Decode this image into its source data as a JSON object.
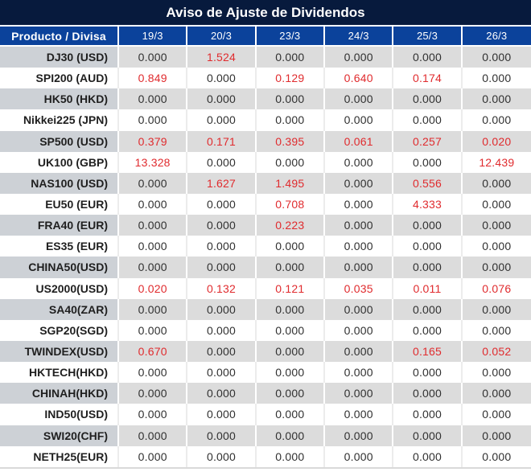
{
  "title": "Aviso de Ajuste de Dividendos",
  "colors": {
    "title_bar": "#071a3d",
    "header_blue": "#0b429b",
    "row_gray": "#dcdcdc",
    "row_gray_first": "#cdd1d6",
    "text_dark": "#303030",
    "text_red": "#e02b2e",
    "strip_gray": "#d9d9d9"
  },
  "table": {
    "columns": [
      "Producto / Divisa",
      "19/3",
      "20/3",
      "23/3",
      "24/3",
      "25/3",
      "26/3"
    ],
    "rows": [
      {
        "product": "DJ30 (USD)",
        "values": [
          "0.000",
          "1.524",
          "0.000",
          "0.000",
          "0.000",
          "0.000"
        ]
      },
      {
        "product": "SPI200 (AUD)",
        "values": [
          "0.849",
          "0.000",
          "0.129",
          "0.640",
          "0.174",
          "0.000"
        ]
      },
      {
        "product": "HK50 (HKD)",
        "values": [
          "0.000",
          "0.000",
          "0.000",
          "0.000",
          "0.000",
          "0.000"
        ]
      },
      {
        "product": "Nikkei225 (JPN)",
        "values": [
          "0.000",
          "0.000",
          "0.000",
          "0.000",
          "0.000",
          "0.000"
        ]
      },
      {
        "product": "SP500 (USD)",
        "values": [
          "0.379",
          "0.171",
          "0.395",
          "0.061",
          "0.257",
          "0.020"
        ]
      },
      {
        "product": "UK100 (GBP)",
        "values": [
          "13.328",
          "0.000",
          "0.000",
          "0.000",
          "0.000",
          "12.439"
        ]
      },
      {
        "product": "NAS100 (USD)",
        "values": [
          "0.000",
          "1.627",
          "1.495",
          "0.000",
          "0.556",
          "0.000"
        ]
      },
      {
        "product": "EU50 (EUR)",
        "values": [
          "0.000",
          "0.000",
          "0.708",
          "0.000",
          "4.333",
          "0.000"
        ]
      },
      {
        "product": "FRA40 (EUR)",
        "values": [
          "0.000",
          "0.000",
          "0.223",
          "0.000",
          "0.000",
          "0.000"
        ]
      },
      {
        "product": "ES35 (EUR)",
        "values": [
          "0.000",
          "0.000",
          "0.000",
          "0.000",
          "0.000",
          "0.000"
        ]
      },
      {
        "product": "CHINA50(USD)",
        "values": [
          "0.000",
          "0.000",
          "0.000",
          "0.000",
          "0.000",
          "0.000"
        ]
      },
      {
        "product": "US2000(USD)",
        "values": [
          "0.020",
          "0.132",
          "0.121",
          "0.035",
          "0.011",
          "0.076"
        ]
      },
      {
        "product": "SA40(ZAR)",
        "values": [
          "0.000",
          "0.000",
          "0.000",
          "0.000",
          "0.000",
          "0.000"
        ]
      },
      {
        "product": "SGP20(SGD)",
        "values": [
          "0.000",
          "0.000",
          "0.000",
          "0.000",
          "0.000",
          "0.000"
        ]
      },
      {
        "product": "TWINDEX(USD)",
        "values": [
          "0.670",
          "0.000",
          "0.000",
          "0.000",
          "0.165",
          "0.052"
        ]
      },
      {
        "product": "HKTECH(HKD)",
        "values": [
          "0.000",
          "0.000",
          "0.000",
          "0.000",
          "0.000",
          "0.000"
        ]
      },
      {
        "product": "CHINAH(HKD)",
        "values": [
          "0.000",
          "0.000",
          "0.000",
          "0.000",
          "0.000",
          "0.000"
        ]
      },
      {
        "product": "IND50(USD)",
        "values": [
          "0.000",
          "0.000",
          "0.000",
          "0.000",
          "0.000",
          "0.000"
        ]
      },
      {
        "product": "SWI20(CHF)",
        "values": [
          "0.000",
          "0.000",
          "0.000",
          "0.000",
          "0.000",
          "0.000"
        ]
      },
      {
        "product": "NETH25(EUR)",
        "values": [
          "0.000",
          "0.000",
          "0.000",
          "0.000",
          "0.000",
          "0.000"
        ]
      }
    ]
  }
}
